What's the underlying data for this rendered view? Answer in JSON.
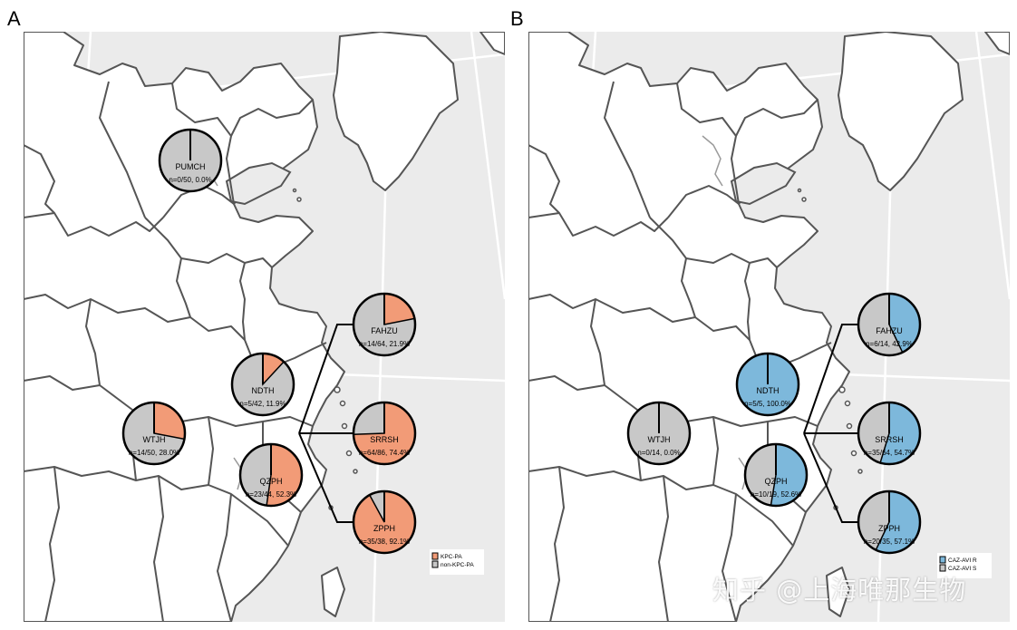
{
  "panels": [
    {
      "letter": "A",
      "legend": [
        {
          "label": "KPC-PA",
          "color": "#F29B77"
        },
        {
          "label": "non-KPC-PA",
          "color": "#C8C8C8"
        }
      ],
      "sites": [
        {
          "name": "PUMCH",
          "stat": "n=0/50, 0.0%",
          "fraction": 0.0
        },
        {
          "name": "FAHZU",
          "stat": "n=14/64, 21.9%",
          "fraction": 0.219
        },
        {
          "name": "NDTH",
          "stat": "n=5/42, 11.9%",
          "fraction": 0.119
        },
        {
          "name": "WTJH",
          "stat": "n=14/50, 28.0%",
          "fraction": 0.28
        },
        {
          "name": "SRRSH",
          "stat": "n=64/86, 74.4%",
          "fraction": 0.744
        },
        {
          "name": "QZPH",
          "stat": "n=23/44, 52.3%",
          "fraction": 0.523
        },
        {
          "name": "ZPPH",
          "stat": "n=35/38, 92.1%",
          "fraction": 0.921
        }
      ]
    },
    {
      "letter": "B",
      "legend": [
        {
          "label": "CAZ-AVI R",
          "color": "#7DB8DB"
        },
        {
          "label": "CAZ-AVI S",
          "color": "#C8C8C8"
        }
      ],
      "sites": [
        {
          "name": "FAHZU",
          "stat": "n=6/14, 42.9%",
          "fraction": 0.429
        },
        {
          "name": "NDTH",
          "stat": "n=5/5, 100.0%",
          "fraction": 1.0
        },
        {
          "name": "WTJH",
          "stat": "n=0/14, 0.0%",
          "fraction": 0.0
        },
        {
          "name": "SRRSH",
          "stat": "n=35/64, 54.7%",
          "fraction": 0.547
        },
        {
          "name": "QZPH",
          "stat": "n=10/19, 52.6%",
          "fraction": 0.526
        },
        {
          "name": "ZPPH",
          "stat": "n=20/35, 57.1%",
          "fraction": 0.571
        }
      ]
    }
  ],
  "watermark": "知乎 @上海唯那生物"
}
